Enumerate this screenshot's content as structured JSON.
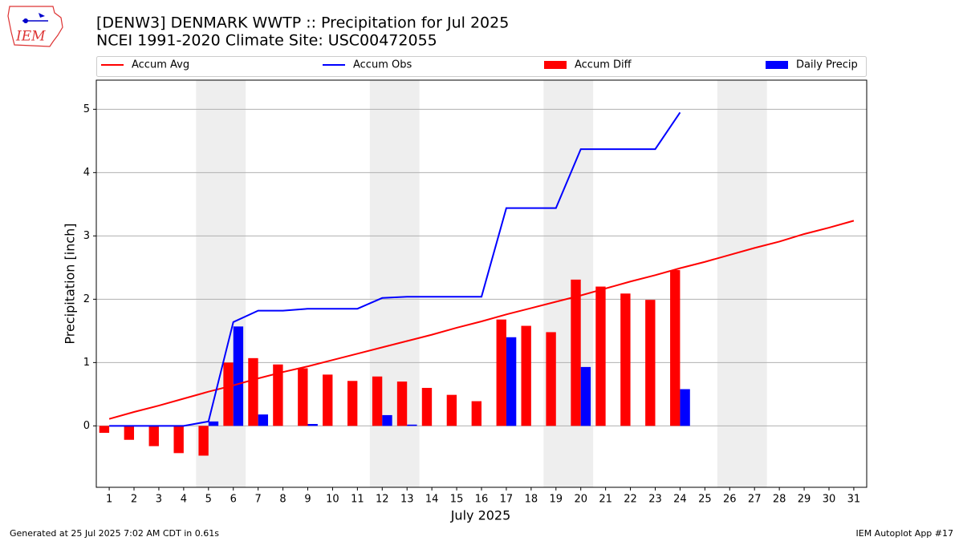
{
  "chart_data": {
    "type": "combo",
    "title": "[DENW3] DENMARK WWTP :: Precipitation for Jul 2025",
    "subtitle": "NCEI 1991-2020 Climate Site: USC00472055",
    "xlabel": "July 2025",
    "ylabel": "Precipitation [inch]",
    "footer_left": "Generated at 25 Jul 2025 7:02 AM CDT in 0.61s",
    "footer_right": "IEM Autoplot App #17",
    "logo_text": "IEM",
    "x": [
      1,
      2,
      3,
      4,
      5,
      6,
      7,
      8,
      9,
      10,
      11,
      12,
      13,
      14,
      15,
      16,
      17,
      18,
      19,
      20,
      21,
      22,
      23,
      24,
      25,
      26,
      27,
      28,
      29,
      30,
      31
    ],
    "xlim": [
      0.48,
      31.52
    ],
    "xticks": [
      1,
      2,
      3,
      4,
      5,
      6,
      7,
      8,
      9,
      10,
      11,
      12,
      13,
      14,
      15,
      16,
      17,
      18,
      19,
      20,
      21,
      22,
      23,
      24,
      25,
      26,
      27,
      28,
      29,
      30,
      31
    ],
    "ylim": [
      -0.97,
      5.46
    ],
    "yticks": [
      0,
      1,
      2,
      3,
      4,
      5
    ],
    "grid": true,
    "shaded_spans": [
      [
        4.5,
        6.5
      ],
      [
        11.5,
        13.5
      ],
      [
        18.5,
        20.5
      ],
      [
        25.5,
        27.5
      ]
    ],
    "series": [
      {
        "name": "Accum Avg",
        "mark": "line",
        "color": "#ff0000",
        "values": [
          0.11,
          0.22,
          0.32,
          0.43,
          0.54,
          0.64,
          0.75,
          0.85,
          0.94,
          1.04,
          1.14,
          1.24,
          1.34,
          1.44,
          1.55,
          1.65,
          1.76,
          1.86,
          1.96,
          2.06,
          2.17,
          2.28,
          2.38,
          2.49,
          2.59,
          2.7,
          2.81,
          2.91,
          3.03,
          3.13,
          3.24
        ]
      },
      {
        "name": "Accum Obs",
        "mark": "line",
        "color": "#0000ff",
        "values": [
          0,
          0,
          0,
          0,
          0.07,
          1.64,
          1.82,
          1.82,
          1.85,
          1.85,
          1.85,
          2.02,
          2.04,
          2.04,
          2.04,
          2.04,
          3.44,
          3.44,
          3.44,
          4.37,
          4.37,
          4.37,
          4.37,
          4.95,
          null,
          null,
          null,
          null,
          null,
          null,
          null
        ]
      },
      {
        "name": "Accum Diff",
        "mark": "bar",
        "offset": -0.2,
        "width": 0.4,
        "color": "#ff0000",
        "values": [
          -0.11,
          -0.22,
          -0.32,
          -0.43,
          -0.47,
          1.0,
          1.07,
          0.97,
          0.91,
          0.81,
          0.71,
          0.78,
          0.7,
          0.6,
          0.49,
          0.39,
          1.68,
          1.58,
          1.48,
          2.31,
          2.2,
          2.09,
          1.99,
          2.46,
          null,
          null,
          null,
          null,
          null,
          null,
          null
        ]
      },
      {
        "name": "Daily Precip",
        "mark": "bar",
        "offset": 0.2,
        "width": 0.4,
        "color": "#0000ff",
        "values": [
          0,
          0,
          0,
          0,
          0.07,
          1.57,
          0.18,
          0,
          0.03,
          0,
          0,
          0.17,
          0.02,
          0,
          0,
          0,
          1.4,
          0,
          0,
          0.93,
          0,
          0,
          0,
          0.58,
          null,
          null,
          null,
          null,
          null,
          null,
          null
        ]
      }
    ]
  }
}
